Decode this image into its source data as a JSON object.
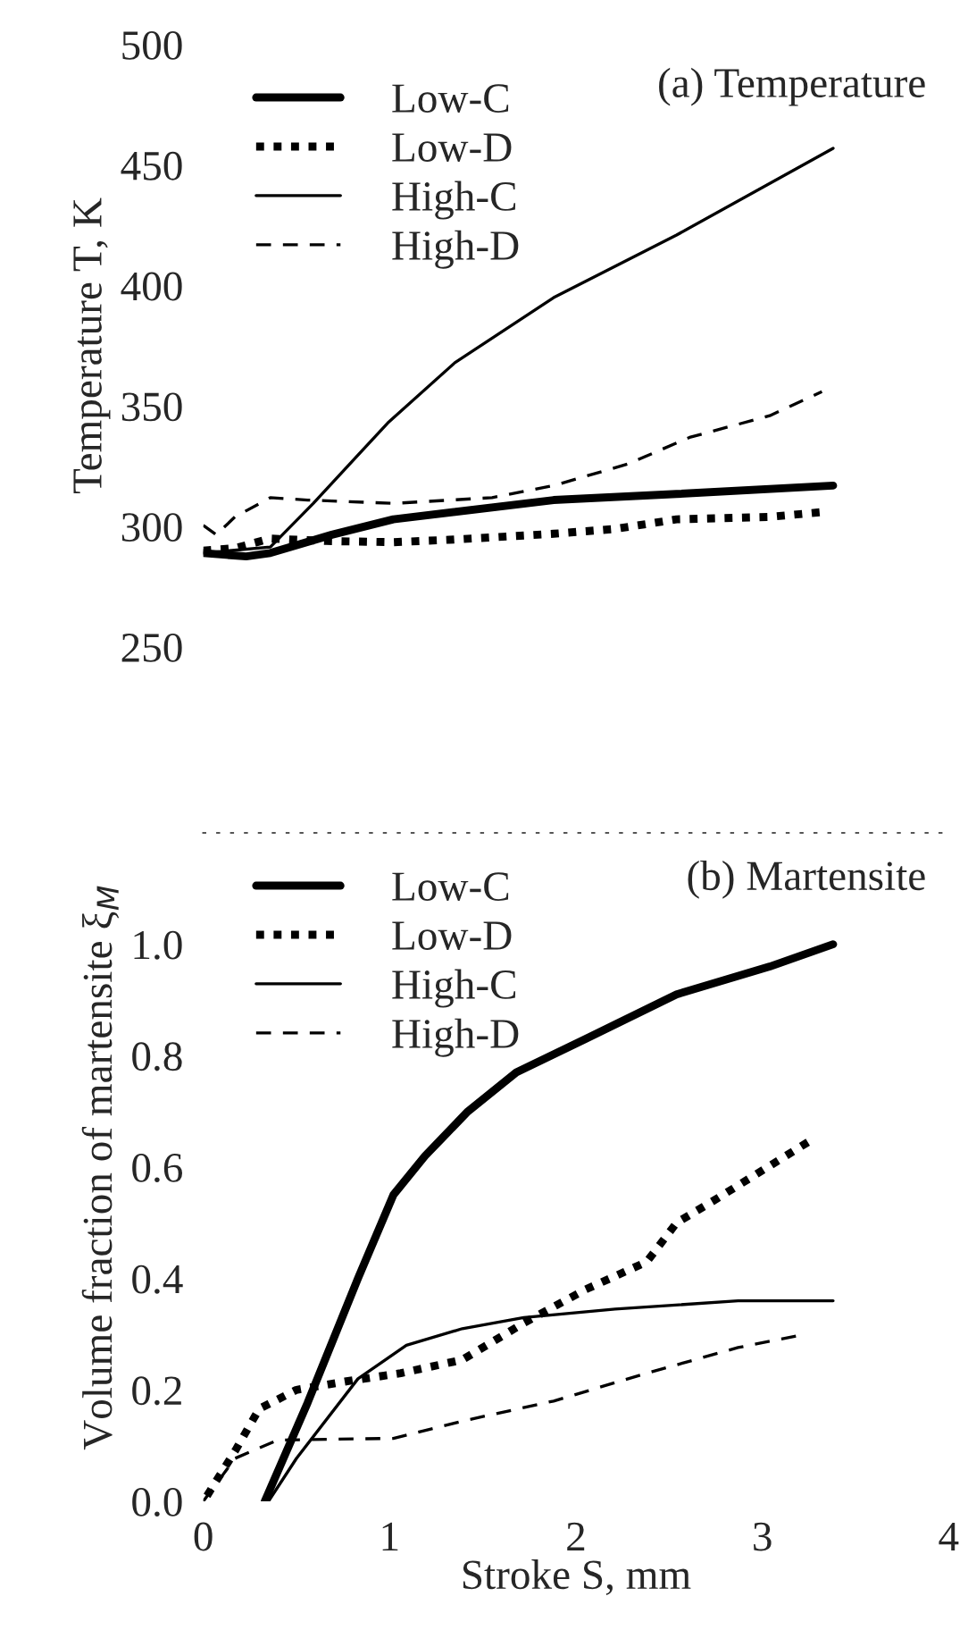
{
  "chart_data": [
    {
      "type": "line",
      "ylabel": "Temperature T, K",
      "annotations": [
        "(a) Temperature"
      ],
      "xlim": [
        0,
        4
      ],
      "xticks": [
        0,
        1,
        2,
        3,
        4
      ],
      "ylim": [
        250,
        500
      ],
      "yticks": [
        250,
        300,
        350,
        400,
        450,
        500
      ],
      "tick_labels": "y",
      "grid": false,
      "legend": "top left",
      "series": [
        {
          "name": "Low-C",
          "color": "#000000",
          "line_style": "solid",
          "x": [
            0,
            0.23,
            0.36,
            0.69,
            1.02,
            1.88,
            2.54,
            3.38
          ],
          "values": [
            289,
            287.6,
            289,
            296.6,
            303,
            311,
            313.5,
            317
          ]
        },
        {
          "name": "Low-D",
          "color": "#000000",
          "line_style": "dotted",
          "x": [
            0,
            0.17,
            0.36,
            0.66,
            1.02,
            1.32,
            1.88,
            2.21,
            2.54,
            3.04,
            3.32
          ],
          "values": [
            290,
            291,
            295,
            294,
            293.5,
            294.5,
            297,
            299,
            303,
            304,
            306
          ]
        },
        {
          "name": "High-C",
          "color": "#000000",
          "line_style": "solid",
          "x": [
            0,
            0.36,
            0.59,
            0.99,
            1.35,
            1.88,
            2.54,
            3.38
          ],
          "values": [
            289,
            291.5,
            309.6,
            343,
            368,
            395,
            421,
            457
          ]
        },
        {
          "name": "High-D",
          "color": "#000000",
          "line_style": "dashed",
          "x": [
            0,
            0.07,
            0.17,
            0.36,
            0.56,
            1.02,
            1.55,
            1.88,
            2.28,
            2.61,
            3.04,
            3.32
          ],
          "values": [
            300.5,
            296.6,
            304,
            312,
            311,
            309.6,
            312,
            317,
            326,
            337,
            346,
            356
          ]
        }
      ]
    },
    {
      "type": "line",
      "xlabel": "Stroke S, mm",
      "ylabel": "Volume fraction of martensite ξ$_{M}$",
      "annotations": [
        "(b) Martensite"
      ],
      "xlim": [
        0,
        4
      ],
      "xticks": [
        0,
        1,
        2,
        3,
        4
      ],
      "ylim": [
        0,
        1.2
      ],
      "yticks": [
        {
          "value": 0,
          "label": "0.0"
        },
        {
          "value": 0.2,
          "label": "0.2"
        },
        {
          "value": 0.4,
          "label": "0.4"
        },
        {
          "value": 0.6,
          "label": "0.6"
        },
        {
          "value": 0.8,
          "label": "0.8"
        },
        {
          "value": 1.0,
          "label": "1.0"
        }
      ],
      "grid": false,
      "legend": "top left",
      "series": [
        {
          "name": "Low-C",
          "color": "#000000",
          "line_style": "solid",
          "x": [
            0.33,
            0.56,
            0.83,
            1.02,
            1.19,
            1.42,
            1.68,
            2.05,
            2.54,
            3.04,
            3.38
          ],
          "values": [
            0,
            0.177,
            0.4,
            0.55,
            0.62,
            0.7,
            0.77,
            0.83,
            0.91,
            0.96,
            1.0
          ]
        },
        {
          "name": "Low-D",
          "color": "#000000",
          "line_style": "dotted",
          "x": [
            0.02,
            0.17,
            0.3,
            0.5,
            0.76,
            1.06,
            1.39,
            1.72,
            2.05,
            2.38,
            2.54,
            2.74,
            3.27
          ],
          "values": [
            0.01,
            0.09,
            0.166,
            0.2,
            0.215,
            0.23,
            0.254,
            0.32,
            0.38,
            0.43,
            0.5,
            0.54,
            0.65
          ]
        },
        {
          "name": "High-C",
          "color": "#000000",
          "line_style": "solid",
          "x": [
            0.35,
            0.5,
            0.83,
            1.09,
            1.39,
            1.72,
            2.21,
            2.87,
            3.38
          ],
          "values": [
            0,
            0.077,
            0.22,
            0.28,
            0.31,
            0.33,
            0.345,
            0.36,
            0.36
          ]
        },
        {
          "name": "High-D",
          "color": "#000000",
          "line_style": "dashed",
          "x": [
            0,
            0.17,
            0.4,
            1.02,
            1.39,
            1.88,
            2.38,
            2.87,
            3.23
          ],
          "values": [
            0,
            0.077,
            0.11,
            0.113,
            0.144,
            0.18,
            0.23,
            0.276,
            0.3
          ]
        }
      ]
    }
  ]
}
